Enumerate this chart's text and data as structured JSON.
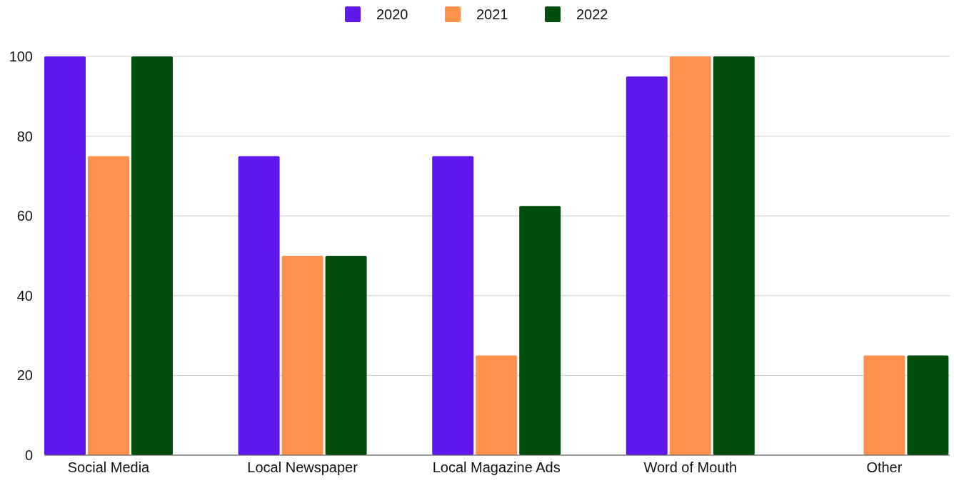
{
  "chart_data": {
    "type": "bar",
    "categories": [
      "Social Media",
      "Local Newspaper",
      "Local Magazine Ads",
      "Word of Mouth",
      "Other"
    ],
    "series": [
      {
        "name": "2020",
        "color": "#5e18eb",
        "values": [
          100,
          75,
          75,
          95,
          0
        ]
      },
      {
        "name": "2021",
        "color": "#ff914d",
        "values": [
          75,
          50,
          25,
          100,
          25
        ]
      },
      {
        "name": "2022",
        "color": "#004d0c",
        "values": [
          100,
          50,
          62.5,
          100,
          25
        ]
      }
    ],
    "ylim": [
      0,
      100
    ],
    "yticks": [
      0,
      20,
      40,
      60,
      80,
      100
    ],
    "grid": "y",
    "legend": "top"
  }
}
